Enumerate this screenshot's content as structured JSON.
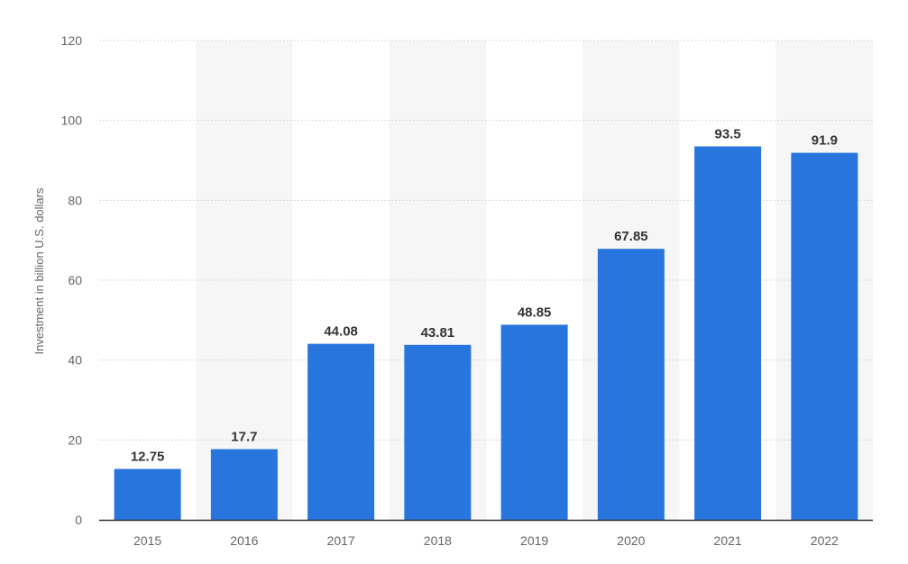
{
  "chart_data": {
    "type": "bar",
    "categories": [
      "2015",
      "2016",
      "2017",
      "2018",
      "2019",
      "2020",
      "2021",
      "2022"
    ],
    "values": [
      12.75,
      17.7,
      44.08,
      43.81,
      48.85,
      67.85,
      93.5,
      91.9
    ],
    "data_labels": [
      "12.75",
      "17.7",
      "44.08",
      "43.81",
      "48.85",
      "67.85",
      "93.5",
      "91.9"
    ],
    "title": "",
    "xlabel": "",
    "ylabel": "Investment in billion U.S. dollars",
    "ylim": [
      0,
      120
    ],
    "yticks": [
      "0",
      "20",
      "40",
      "60",
      "80",
      "100",
      "120"
    ],
    "grid": true,
    "alternating_column_bands": true,
    "colors": {
      "bar": "#2876dd",
      "band": "#f6f6f7",
      "grid": "#d9d9d9",
      "axis": "#333333"
    }
  }
}
